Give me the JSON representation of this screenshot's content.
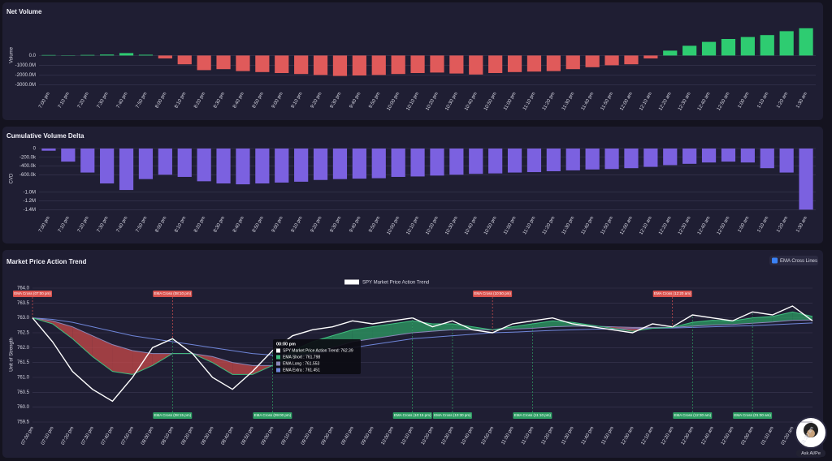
{
  "chart_data": [
    {
      "type": "bar",
      "title": "Net Volume",
      "y_label": "Volume",
      "categories": [
        "7:00 pm",
        "7:10 pm",
        "7:20 pm",
        "7:30 pm",
        "7:40 pm",
        "7:50 pm",
        "8:00 pm",
        "8:10 pm",
        "8:20 pm",
        "8:30 pm",
        "8:40 pm",
        "8:50 pm",
        "9:00 pm",
        "9:10 pm",
        "9:20 pm",
        "9:30 pm",
        "9:40 pm",
        "9:50 pm",
        "10:00 pm",
        "10:10 pm",
        "10:20 pm",
        "10:30 pm",
        "10:40 pm",
        "10:50 pm",
        "11:00 pm",
        "11:10 pm",
        "11:20 pm",
        "11:30 pm",
        "11:40 pm",
        "11:50 pm",
        "12:00 am",
        "12:10 am",
        "12:20 am",
        "12:30 am",
        "12:40 am",
        "12:50 am",
        "1:00 am",
        "1:10 am",
        "1:20 am",
        "1:30 am"
      ],
      "values": [
        50,
        30,
        60,
        100,
        250,
        80,
        -300,
        -900,
        -1500,
        -1400,
        -1600,
        -1700,
        -1800,
        -1900,
        -2000,
        -2100,
        -2050,
        -2000,
        -1900,
        -1800,
        -1750,
        -1850,
        -1950,
        -1800,
        -1700,
        -1650,
        -1600,
        -1400,
        -1200,
        -1000,
        -900,
        -300,
        500,
        1000,
        1400,
        1700,
        1900,
        2100,
        2500,
        2800
      ],
      "color": "#2ecc71",
      "negative_color": "#e05a5a",
      "ylim": [
        -3300,
        3200
      ],
      "yticks": [
        {
          "value": 0,
          "label": "0.0"
        },
        {
          "value": -1000,
          "label": "-1000.0M"
        },
        {
          "value": -2000,
          "label": "-2000.0M"
        },
        {
          "value": -3000,
          "label": "-3000.0M"
        }
      ],
      "grid": true
    },
    {
      "type": "bar",
      "title": "Cumulative Volume Delta",
      "y_label": "CVD",
      "categories": [
        "7:00 pm",
        "7:10 pm",
        "7:20 pm",
        "7:30 pm",
        "7:40 pm",
        "7:50 pm",
        "8:00 pm",
        "8:10 pm",
        "8:20 pm",
        "8:30 pm",
        "8:40 pm",
        "8:50 pm",
        "9:00 pm",
        "9:10 pm",
        "9:20 pm",
        "9:30 pm",
        "9:40 pm",
        "9:50 pm",
        "10:00 pm",
        "10:10 pm",
        "10:20 pm",
        "10:30 pm",
        "10:40 pm",
        "10:50 pm",
        "11:00 pm",
        "11:10 pm",
        "11:20 pm",
        "11:30 pm",
        "11:40 pm",
        "11:50 pm",
        "12:00 am",
        "12:10 am",
        "12:20 am",
        "12:30 am",
        "12:40 am",
        "12:50 am",
        "1:00 am",
        "1:10 am",
        "1:20 am",
        "1:30 am"
      ],
      "values": [
        -50000,
        -300000,
        -550000,
        -800000,
        -950000,
        -700000,
        -600000,
        -650000,
        -750000,
        -800000,
        -820000,
        -800000,
        -780000,
        -760000,
        -720000,
        -700000,
        -690000,
        -680000,
        -650000,
        -640000,
        -620000,
        -600000,
        -580000,
        -570000,
        -550000,
        -540000,
        -520000,
        -500000,
        -480000,
        -470000,
        -450000,
        -420000,
        -380000,
        -350000,
        -320000,
        -300000,
        -320000,
        -450000,
        -550000,
        -1400000
      ],
      "color": "#7b61e0",
      "ylim": [
        -1450000,
        0
      ],
      "yticks": [
        0,
        {
          "value": -200000,
          "label": "-200.0k"
        },
        {
          "value": -400000,
          "label": "-400.0k"
        },
        {
          "value": -600000,
          "label": "-600.0k"
        },
        {
          "value": -1000000,
          "label": "-1.0M"
        },
        {
          "value": -1200000,
          "label": "-1.2M"
        },
        {
          "value": -1400000,
          "label": "-1.4M"
        }
      ],
      "grid": true
    },
    {
      "type": "line",
      "title": "Market Price Action Trend",
      "y_label": "Unit of Strength",
      "categories": [
        "07:00 pm",
        "07:10 pm",
        "07:20 pm",
        "07:30 pm",
        "07:40 pm",
        "07:50 pm",
        "08:00 pm",
        "08:10 pm",
        "08:20 pm",
        "08:30 pm",
        "08:40 pm",
        "08:50 pm",
        "09:00 pm",
        "09:10 pm",
        "09:20 pm",
        "09:30 pm",
        "09:40 pm",
        "09:50 pm",
        "10:00 pm",
        "10:10 pm",
        "10:20 pm",
        "10:30 pm",
        "10:40 pm",
        "10:50 pm",
        "11:00 pm",
        "11:10 pm",
        "11:20 pm",
        "11:30 pm",
        "11:40 pm",
        "11:50 pm",
        "12:00 am",
        "12:10 am",
        "12:20 am",
        "12:30 am",
        "12:40 am",
        "12:50 am",
        "01:00 am",
        "01:10 am",
        "01:20 am",
        "01:30 am"
      ],
      "series": [
        {
          "name": "SPY Market Price Action Trend",
          "color": "#ffffff",
          "values": [
            763.0,
            762.2,
            761.2,
            760.6,
            760.2,
            761.0,
            762.0,
            762.3,
            761.8,
            761.0,
            760.6,
            761.2,
            761.9,
            762.4,
            762.6,
            762.7,
            762.9,
            762.8,
            762.9,
            763.0,
            762.7,
            762.9,
            762.6,
            762.5,
            762.8,
            762.9,
            763.0,
            762.8,
            762.7,
            762.6,
            762.5,
            762.8,
            762.7,
            763.1,
            763.0,
            762.9,
            763.2,
            763.1,
            763.4,
            762.9
          ]
        },
        {
          "name": "EMA Short",
          "color": "#3fbf7f",
          "values": [
            763.0,
            762.8,
            762.3,
            761.7,
            761.2,
            761.1,
            761.4,
            761.8,
            761.8,
            761.5,
            761.1,
            761.1,
            761.4,
            761.9,
            762.2,
            762.4,
            762.6,
            762.7,
            762.8,
            762.9,
            762.8,
            762.8,
            762.7,
            762.6,
            762.7,
            762.8,
            762.9,
            762.85,
            762.75,
            762.65,
            762.55,
            762.65,
            762.68,
            762.85,
            762.92,
            762.9,
            763.0,
            763.05,
            763.2,
            763.05
          ]
        },
        {
          "name": "EMA Long",
          "color": "#8a86b8",
          "values": [
            763.0,
            762.9,
            762.7,
            762.4,
            762.1,
            761.9,
            761.8,
            761.8,
            761.8,
            761.7,
            761.5,
            761.4,
            761.4,
            761.6,
            761.8,
            762.0,
            762.2,
            762.3,
            762.4,
            762.5,
            762.55,
            762.6,
            762.6,
            762.6,
            762.62,
            762.65,
            762.7,
            762.72,
            762.72,
            762.7,
            762.68,
            762.68,
            762.68,
            762.72,
            762.76,
            762.78,
            762.82,
            762.86,
            762.92,
            762.93
          ]
        },
        {
          "name": "EMA Extra",
          "color": "#6f86d9",
          "values": [
            763.0,
            762.95,
            762.85,
            762.7,
            762.55,
            762.4,
            762.3,
            762.2,
            762.1,
            762.0,
            761.9,
            761.8,
            761.75,
            761.75,
            761.8,
            761.9,
            762.0,
            762.1,
            762.2,
            762.3,
            762.35,
            762.4,
            762.45,
            762.5,
            762.52,
            762.55,
            762.58,
            762.6,
            762.62,
            762.63,
            762.64,
            762.65,
            762.66,
            762.68,
            762.7,
            762.72,
            762.74,
            762.77,
            762.8,
            762.83
          ]
        }
      ],
      "fill_up_color": "#2e9e64",
      "fill_down_color": "#c94a4a",
      "ylim": [
        759.5,
        764.0
      ],
      "yticks": [
        {
          "value": 764,
          "label": "764.0"
        },
        763.5,
        {
          "value": 763,
          "label": "763.0"
        },
        762.5,
        {
          "value": 762,
          "label": "762.0"
        },
        761.5,
        {
          "value": 761,
          "label": "761.0"
        },
        760.5,
        {
          "value": 760,
          "label": "760.0"
        },
        759.5
      ],
      "grid": true,
      "annotations": [
        {
          "label": "EMA Cross (07:00 pm)",
          "x": "07:00 pm",
          "position": "top",
          "color": "#d9534f"
        },
        {
          "label": "EMA Cross (08:10 pm)",
          "x": "08:10 pm",
          "position": "top",
          "color": "#d9534f"
        },
        {
          "label": "EMA Cross (10:50 pm)",
          "x": "10:50 pm",
          "position": "top",
          "color": "#d9534f"
        },
        {
          "label": "EMA Cross (12:20 am)",
          "x": "12:20 am",
          "position": "top",
          "color": "#d9534f"
        },
        {
          "label": "EMA Cross (08:15 pm)",
          "x": "08:10 pm",
          "position": "bottom",
          "color": "#2e9e64"
        },
        {
          "label": "EMA Cross (09:00 pm)",
          "x": "09:00 pm",
          "position": "bottom",
          "color": "#2e9e64"
        },
        {
          "label": "EMA Cross (10:15 pm)",
          "x": "10:10 pm",
          "position": "bottom",
          "color": "#2e9e64"
        },
        {
          "label": "EMA Cross (10:30 pm)",
          "x": "10:30 pm",
          "position": "bottom",
          "color": "#2e9e64"
        },
        {
          "label": "EMA Cross (11:10 pm)",
          "x": "11:10 pm",
          "position": "bottom",
          "color": "#2e9e64"
        },
        {
          "label": "EMA Cross (12:30 am)",
          "x": "12:30 am",
          "position": "bottom",
          "color": "#2e9e64"
        },
        {
          "label": "EMA Cross (01:00 am)",
          "x": "01:00 am",
          "position": "bottom",
          "color": "#2e9e64"
        }
      ],
      "tooltip": {
        "title": "00:00 pm",
        "rows": [
          "SPY Market Price Action Trend: 762.39",
          "EMA Short : 761.798",
          "EMA Long : 761.553",
          "EMA Extra : 761.451"
        ]
      }
    }
  ],
  "controls": {
    "checkbox": "EMA Cross Lines",
    "assistant": "Ask AI/Pe"
  }
}
